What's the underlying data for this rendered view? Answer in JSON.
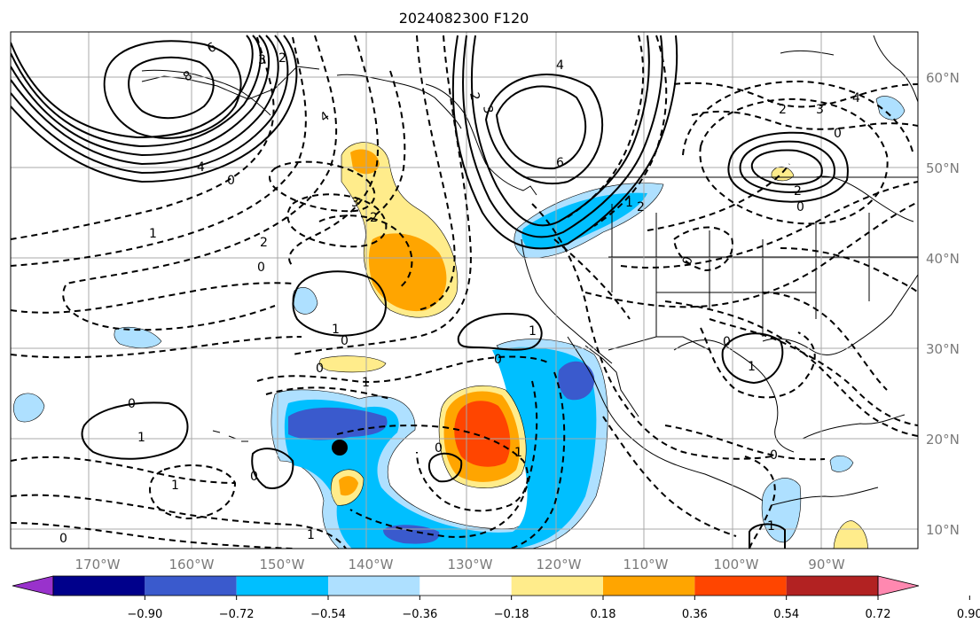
{
  "title": "2024082300 F120",
  "lat_labels": [
    "60°N",
    "50°N",
    "40°N",
    "30°N",
    "20°N",
    "10°N"
  ],
  "lon_labels": [
    "170°W",
    "160°W",
    "150°W",
    "140°W",
    "130°W",
    "120°W",
    "110°W",
    "100°W",
    "90°W"
  ],
  "colorbar": {
    "colors": [
      "#9932cc",
      "#00008b",
      "#3a5acd",
      "#00bfff",
      "#aee0ff",
      "#ffffff",
      "#ffec8b",
      "#ffa500",
      "#ff4500",
      "#b22222",
      "#ff88b0"
    ],
    "tick_labels": [
      "−0.90",
      "−0.72",
      "−0.54",
      "−0.36",
      "−0.18",
      "0.18",
      "0.36",
      "0.54",
      "0.72",
      "0.90"
    ]
  },
  "contour_labels": [
    "6",
    "3",
    "2",
    "8",
    "4",
    "0",
    "3",
    "2",
    "1",
    "0",
    "2",
    "3",
    "2",
    "4",
    "6",
    "4",
    "1",
    "2",
    "2",
    "3",
    "0",
    "2",
    "0",
    "4",
    "1",
    "1",
    "0",
    "0",
    "0",
    "0",
    "1",
    "0",
    "1",
    "1",
    "0",
    "1",
    "0",
    "0",
    "1",
    "0",
    "0",
    "1",
    "1"
  ],
  "marker": "storm-position-dot"
}
